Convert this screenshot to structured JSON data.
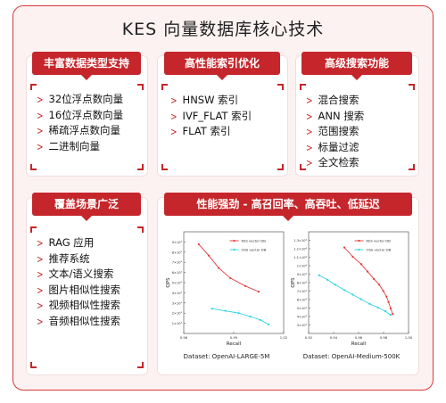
{
  "title": "KES 向量数据库核心技术",
  "colors": {
    "accent": "#c5262b",
    "frame": "#d93a3a",
    "kes_line": "#e43a3a",
    "oss_line": "#2ed3e2"
  },
  "panels": {
    "data_types": {
      "header": "丰富数据类型支持",
      "items": [
        "32位浮点数向量",
        "16位浮点数向量",
        "稀疏浮点数向量",
        "二进制向量"
      ]
    },
    "indexes": {
      "header": "高性能索引优化",
      "items": [
        "HNSW 索引",
        "IVF_FLAT 索引",
        "FLAT 索引"
      ]
    },
    "search": {
      "header": "高级搜索功能",
      "items": [
        "混合搜索",
        "ANN 搜索",
        "范围搜索",
        "标量过滤",
        "全文检索"
      ]
    },
    "scenarios": {
      "header": "覆盖场景广泛",
      "items": [
        "RAG 应用",
        "推荐系统",
        "文本/语义搜索",
        "图片相似性搜索",
        "视频相似性搜索",
        "音频相似性搜索"
      ]
    },
    "performance": {
      "header": "性能强劲 - 高召回率、高吞吐、低延迟"
    }
  },
  "chart_data": [
    {
      "type": "line",
      "xlabel": "Recall",
      "ylabel": "QPS",
      "xticks": [
        "0.96",
        "0.99",
        "1.02"
      ],
      "yticks": [
        "1×10³",
        "2×10³",
        "3×10³",
        "4×10³",
        "5×10³",
        "6×10³",
        "7×10³",
        "8×10³",
        "9×10³"
      ],
      "xlim": [
        0.96,
        1.02
      ],
      "ylim": [
        0,
        9000
      ],
      "legend": "top-right",
      "caption": "Dataset: OpenAI-LARGE-5M",
      "series": [
        {
          "name": "KES vector DB",
          "x": [
            0.969,
            0.975,
            0.981,
            0.988,
            0.997,
            1.005
          ],
          "y": [
            7900,
            6900,
            5800,
            4900,
            4200,
            3700
          ]
        },
        {
          "name": "OSS vector DB",
          "x": [
            0.977,
            0.985,
            0.993,
            1.0,
            1.006,
            1.011
          ],
          "y": [
            2200,
            2000,
            1800,
            1500,
            1200,
            800
          ]
        }
      ]
    },
    {
      "type": "line",
      "xlabel": "Recall",
      "ylabel": "QPS",
      "xticks": [
        "0.92",
        "0.94",
        "0.96",
        "0.98",
        "1.00"
      ],
      "yticks": [
        "3×10³",
        "4×10³",
        "5×10³",
        "6×10³",
        "7×10³",
        "8×10³",
        "9×10³",
        "1×10⁴",
        "1.1×10⁴",
        "1.2×10⁴",
        "1.3×10⁴"
      ],
      "xlim": [
        0.91,
        1.005
      ],
      "ylim": [
        2500,
        13500
      ],
      "legend": "top-right",
      "caption": "Dataset: OpenAI-Medium-500K",
      "series": [
        {
          "name": "KES vector DB",
          "x": [
            0.944,
            0.952,
            0.96,
            0.966,
            0.972,
            0.977,
            0.981,
            0.984,
            0.986,
            0.988,
            0.99
          ],
          "y": [
            11800,
            10800,
            10000,
            9200,
            8400,
            7800,
            7100,
            6500,
            5900,
            5200,
            4600
          ]
        },
        {
          "name": "OSS vector DB",
          "x": [
            0.92,
            0.928,
            0.935,
            0.944,
            0.952,
            0.96,
            0.968,
            0.976,
            0.983,
            0.988
          ],
          "y": [
            8800,
            8300,
            7800,
            7200,
            6700,
            6200,
            5700,
            5300,
            4900,
            4500
          ]
        }
      ]
    }
  ]
}
